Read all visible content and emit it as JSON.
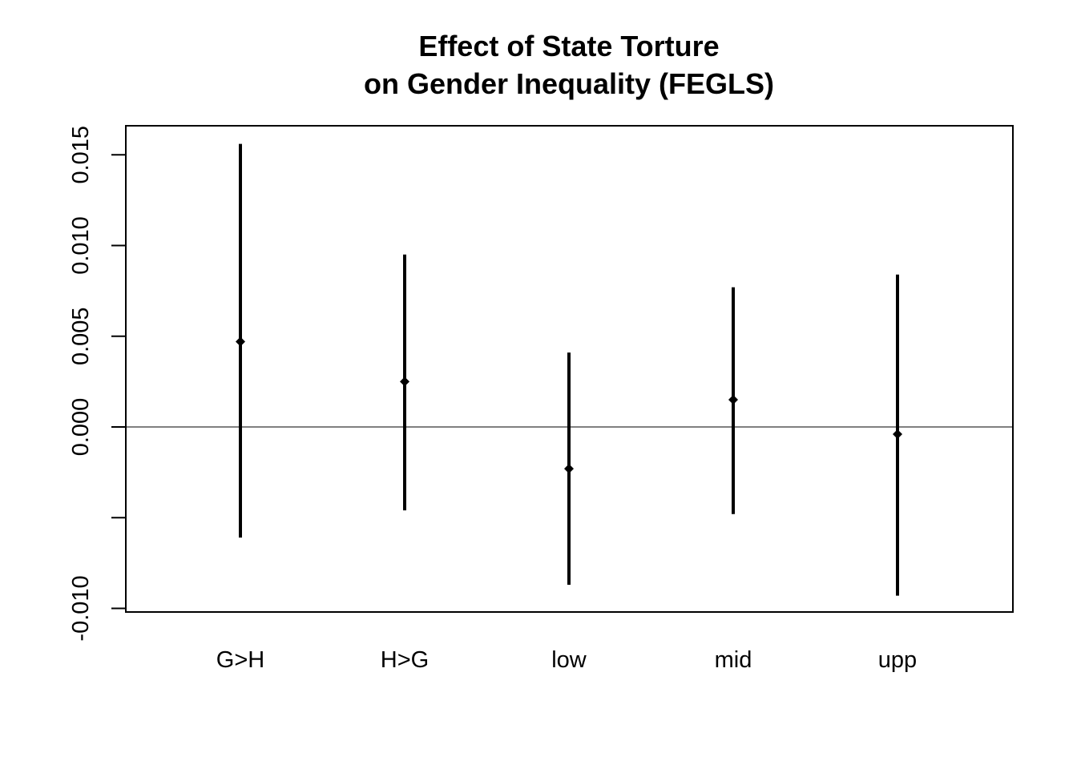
{
  "chart_data": {
    "type": "errorbar",
    "title_lines": [
      "Effect of State Torture",
      "on Gender Inequality (FEGLS)"
    ],
    "xlabel": "",
    "ylabel": "",
    "categories": [
      "G>H",
      "H>G",
      "low",
      "mid",
      "upp"
    ],
    "estimates": [
      0.0047,
      0.0025,
      -0.0023,
      0.0015,
      -0.0004
    ],
    "lower": [
      -0.0061,
      -0.0046,
      -0.0087,
      -0.0048,
      -0.0093
    ],
    "upper": [
      0.0156,
      0.0095,
      0.0041,
      0.0077,
      0.0084
    ],
    "ylim": [
      -0.0102,
      0.0166
    ],
    "yticks": [
      -0.01,
      -0.005,
      0.0,
      0.005,
      0.01,
      0.015
    ],
    "ytick_labels": [
      "-0.010",
      "",
      "0.000",
      "0.005",
      "0.010",
      "0.015"
    ],
    "reference_line_y": 0,
    "colors": {
      "marks": "#000000",
      "axis": "#000000",
      "background": "#ffffff"
    },
    "legend": "none",
    "grid": false
  }
}
